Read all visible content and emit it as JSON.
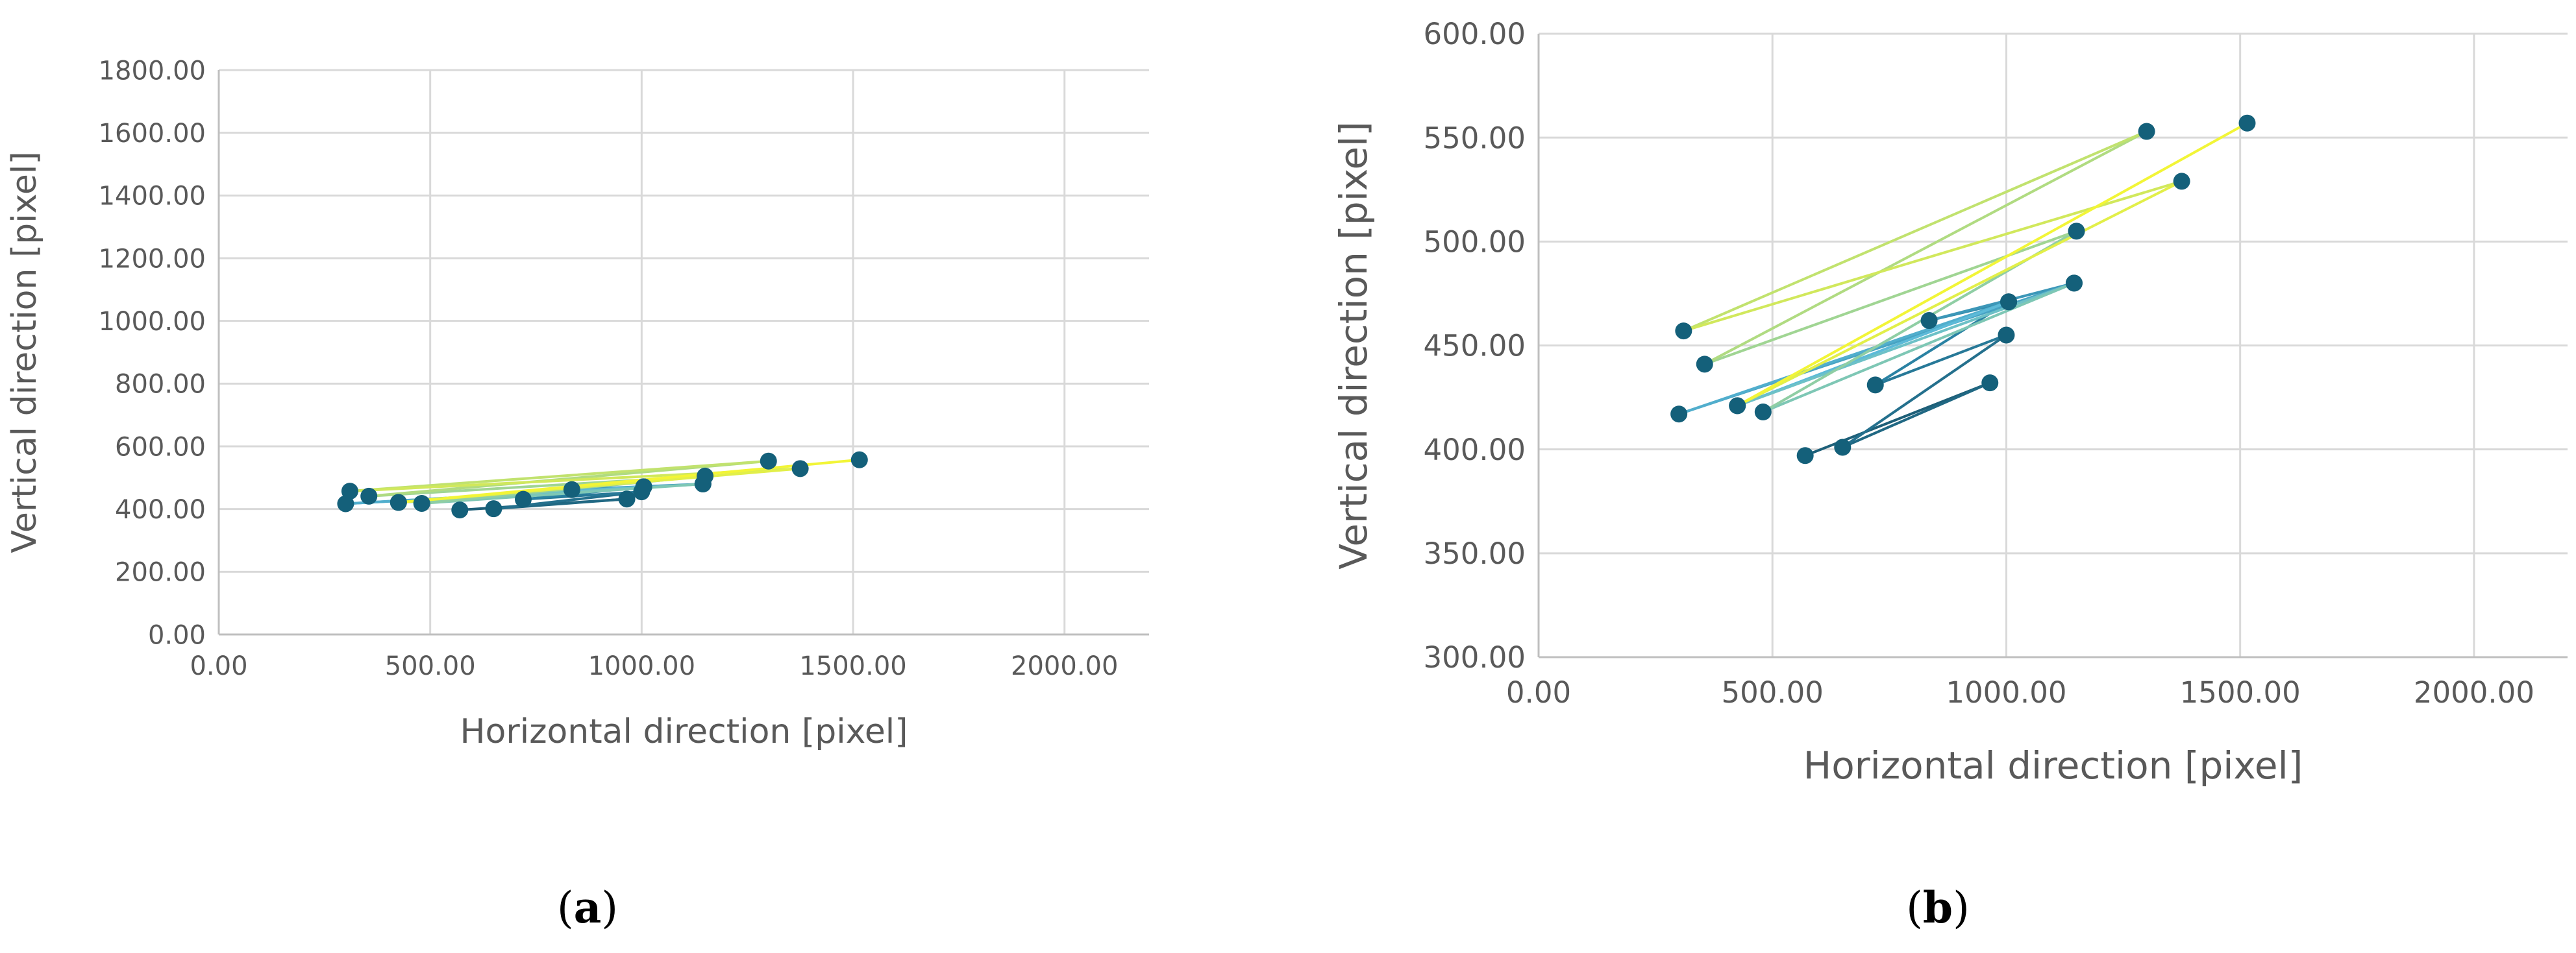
{
  "chart_data": [
    {
      "type": "scatter",
      "panel_label": "a",
      "xlabel": "Horizontal direction [pixel]",
      "ylabel": "Vertical direction [pixel]",
      "xlim": [
        0,
        2200
      ],
      "ylim": [
        0,
        1800
      ],
      "x_ticks": [
        0,
        500,
        1000,
        1500,
        2000
      ],
      "y_ticks": [
        0,
        200,
        400,
        600,
        800,
        1000,
        1200,
        1400,
        1600,
        1800
      ],
      "x_tick_labels": [
        "0.00",
        "500.00",
        "1000.00",
        "1500.00",
        "2000.00"
      ],
      "y_tick_labels": [
        "0.00",
        "200.00",
        "400.00",
        "600.00",
        "800.00",
        "1000.00",
        "1200.00",
        "1400.00",
        "1600.00",
        "1800.00"
      ],
      "grid": true,
      "marker_color": "#14607a",
      "line_gradient": [
        "#1d5f78",
        "#2c86a8",
        "#5cbad8",
        "#a8d88a",
        "#f2f537"
      ],
      "points": [
        {
          "x": 570,
          "y": 397
        },
        {
          "x": 965,
          "y": 432
        },
        {
          "x": 650,
          "y": 401
        },
        {
          "x": 1000,
          "y": 455
        },
        {
          "x": 720,
          "y": 431
        },
        {
          "x": 1005,
          "y": 471
        },
        {
          "x": 835,
          "y": 462
        },
        {
          "x": 1145,
          "y": 480
        },
        {
          "x": 300,
          "y": 417
        },
        {
          "x": 1005,
          "y": 471
        },
        {
          "x": 425,
          "y": 421
        },
        {
          "x": 1145,
          "y": 480
        },
        {
          "x": 480,
          "y": 418
        },
        {
          "x": 1150,
          "y": 505
        },
        {
          "x": 355,
          "y": 441
        },
        {
          "x": 1300,
          "y": 553
        },
        {
          "x": 310,
          "y": 457
        },
        {
          "x": 1375,
          "y": 529
        },
        {
          "x": 425,
          "y": 421
        },
        {
          "x": 1515,
          "y": 557
        }
      ]
    },
    {
      "type": "scatter",
      "panel_label": "b",
      "xlabel": "Horizontal direction [pixel]",
      "ylabel": "Vertical direction [pixel]",
      "xlim": [
        0,
        2200
      ],
      "ylim": [
        300,
        600
      ],
      "x_ticks": [
        0,
        500,
        1000,
        1500,
        2000
      ],
      "y_ticks": [
        300,
        350,
        400,
        450,
        500,
        550,
        600
      ],
      "x_tick_labels": [
        "0.00",
        "500.00",
        "1000.00",
        "1500.00",
        "2000.00"
      ],
      "y_tick_labels": [
        "300.00",
        "350.00",
        "400.00",
        "450.00",
        "500.00",
        "550.00",
        "600.00"
      ],
      "grid": true,
      "marker_color": "#14607a",
      "line_gradient": [
        "#1d5f78",
        "#2c86a8",
        "#5cbad8",
        "#a8d88a",
        "#f2f537"
      ],
      "points": [
        {
          "x": 570,
          "y": 397
        },
        {
          "x": 965,
          "y": 432
        },
        {
          "x": 650,
          "y": 401
        },
        {
          "x": 1000,
          "y": 455
        },
        {
          "x": 720,
          "y": 431
        },
        {
          "x": 1005,
          "y": 471
        },
        {
          "x": 835,
          "y": 462
        },
        {
          "x": 1145,
          "y": 480
        },
        {
          "x": 300,
          "y": 417
        },
        {
          "x": 1005,
          "y": 471
        },
        {
          "x": 425,
          "y": 421
        },
        {
          "x": 1145,
          "y": 480
        },
        {
          "x": 480,
          "y": 418
        },
        {
          "x": 1150,
          "y": 505
        },
        {
          "x": 355,
          "y": 441
        },
        {
          "x": 1300,
          "y": 553
        },
        {
          "x": 310,
          "y": 457
        },
        {
          "x": 1375,
          "y": 529
        },
        {
          "x": 425,
          "y": 421
        },
        {
          "x": 1515,
          "y": 557
        }
      ]
    }
  ]
}
